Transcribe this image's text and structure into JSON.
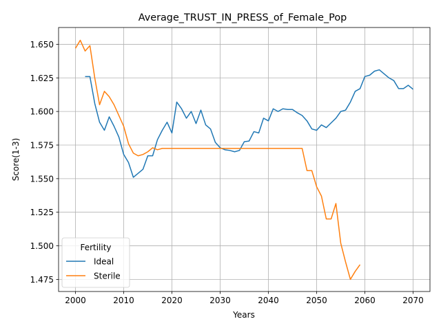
{
  "chart_data": {
    "type": "line",
    "title": "Average_TRUST_IN_PRESS_of_Female_Pop",
    "xlabel": "Years",
    "ylabel": "Score(1-3)",
    "xlim": [
      1996.5,
      2073.5
    ],
    "ylim": [
      1.466,
      1.6625
    ],
    "xticks": [
      2000,
      2010,
      2020,
      2030,
      2040,
      2050,
      2060,
      2070
    ],
    "xtick_labels": [
      "2000",
      "2010",
      "2020",
      "2030",
      "2040",
      "2050",
      "2060",
      "2070"
    ],
    "yticks": [
      1.475,
      1.5,
      1.525,
      1.55,
      1.575,
      1.6,
      1.625,
      1.65
    ],
    "ytick_labels": [
      "1.475",
      "1.500",
      "1.525",
      "1.550",
      "1.575",
      "1.600",
      "1.625",
      "1.650"
    ],
    "grid": true,
    "legend": {
      "title": "Fertility",
      "placement": "lower-left"
    },
    "series": [
      {
        "name": "Ideal",
        "color": "#1f77b4",
        "x": [
          2002,
          2003,
          2004,
          2005,
          2006,
          2007,
          2008,
          2009,
          2010,
          2011,
          2012,
          2013,
          2014,
          2015,
          2016,
          2017,
          2018,
          2019,
          2020,
          2021,
          2022,
          2023,
          2024,
          2025,
          2026,
          2027,
          2028,
          2029,
          2030,
          2031,
          2032,
          2033,
          2034,
          2035,
          2036,
          2037,
          2038,
          2039,
          2040,
          2041,
          2042,
          2043,
          2044,
          2045,
          2046,
          2047,
          2048,
          2049,
          2050,
          2051,
          2052,
          2053,
          2054,
          2055,
          2056,
          2057,
          2058,
          2059,
          2060,
          2061,
          2062,
          2063,
          2064,
          2065,
          2066,
          2067,
          2068,
          2069,
          2070
        ],
        "y": [
          1.626,
          1.626,
          1.606,
          1.592,
          1.586,
          1.596,
          1.589,
          1.581,
          1.568,
          1.562,
          1.551,
          1.554,
          1.557,
          1.567,
          1.567,
          1.579,
          1.586,
          1.592,
          1.584,
          1.607,
          1.602,
          1.595,
          1.6,
          1.591,
          1.601,
          1.59,
          1.587,
          1.577,
          1.573,
          1.5715,
          1.571,
          1.57,
          1.571,
          1.5775,
          1.578,
          1.585,
          1.584,
          1.595,
          1.593,
          1.602,
          1.6,
          1.602,
          1.6015,
          1.6015,
          1.599,
          1.597,
          1.593,
          1.587,
          1.586,
          1.59,
          1.588,
          1.5915,
          1.595,
          1.6,
          1.601,
          1.607,
          1.615,
          1.617,
          1.626,
          1.627,
          1.63,
          1.631,
          1.628,
          1.625,
          1.623,
          1.617,
          1.617,
          1.6195,
          1.6165
        ]
      },
      {
        "name": "Sterile",
        "color": "#ff7f0e",
        "x": [
          2000,
          2001,
          2002,
          2003,
          2004,
          2005,
          2006,
          2007,
          2008,
          2009,
          2010,
          2011,
          2012,
          2013,
          2014,
          2015,
          2016,
          2017,
          2018,
          2019,
          2020,
          2021,
          2022,
          2023,
          2024,
          2025,
          2026,
          2027,
          2028,
          2029,
          2030,
          2031,
          2032,
          2033,
          2034,
          2035,
          2036,
          2037,
          2038,
          2039,
          2040,
          2041,
          2042,
          2043,
          2044,
          2045,
          2046,
          2047,
          2048,
          2049,
          2050,
          2051,
          2052,
          2053,
          2054,
          2055,
          2056,
          2057,
          2058,
          2059
        ],
        "y": [
          1.647,
          1.653,
          1.645,
          1.649,
          1.625,
          1.605,
          1.615,
          1.611,
          1.605,
          1.597,
          1.589,
          1.576,
          1.569,
          1.567,
          1.568,
          1.57,
          1.573,
          1.5715,
          1.5725,
          1.5725,
          1.5725,
          1.5725,
          1.5725,
          1.5725,
          1.5725,
          1.5725,
          1.5725,
          1.5725,
          1.5725,
          1.5725,
          1.5725,
          1.5725,
          1.5725,
          1.5725,
          1.5725,
          1.5725,
          1.5725,
          1.5725,
          1.5725,
          1.5725,
          1.5725,
          1.5725,
          1.5725,
          1.5725,
          1.5725,
          1.5725,
          1.5725,
          1.5725,
          1.556,
          1.556,
          1.544,
          1.537,
          1.52,
          1.52,
          1.5315,
          1.502,
          1.488,
          1.475,
          1.481,
          1.486
        ]
      }
    ]
  }
}
